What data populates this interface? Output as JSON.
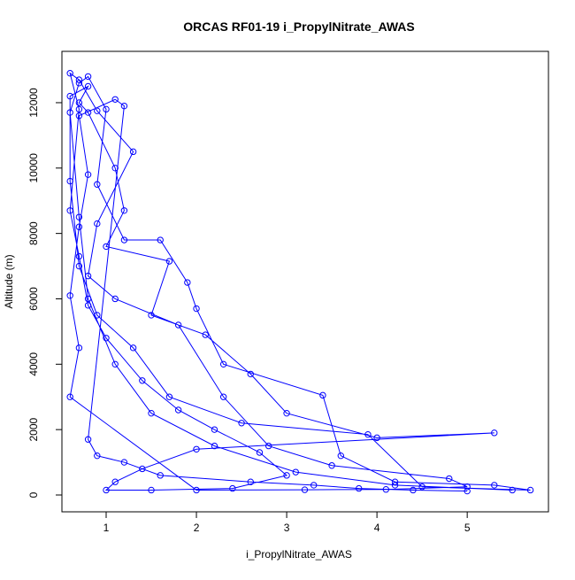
{
  "chart_data": {
    "type": "line",
    "title": "ORCAS RF01-19 i_PropylNitrate_AWAS",
    "xlabel": "i_PropylNitrate_AWAS",
    "ylabel": "Altitude (m)",
    "xlim": [
      0.51,
      5.9
    ],
    "ylim": [
      -515,
      13570
    ],
    "xticks": [
      1,
      2,
      3,
      4,
      5
    ],
    "yticks": [
      0,
      2000,
      4000,
      6000,
      8000,
      10000,
      12000
    ],
    "x": [
      5.5,
      4.2,
      3.1,
      2.2,
      1.5,
      1.1,
      0.8,
      0.7,
      0.6,
      0.7,
      0.8,
      1.0,
      0.9,
      1.2,
      1.6,
      1.9,
      2.0,
      2.3,
      3.4,
      3.6,
      4.2,
      5.3,
      5.7,
      4.5,
      3.9,
      2.5,
      1.7,
      1.3,
      0.9,
      0.7,
      0.6,
      0.6,
      0.8,
      0.7,
      0.8,
      1.1,
      1.2,
      1.0,
      1.7,
      1.5,
      2.1,
      2.6,
      3.0,
      4.0,
      5.3,
      2.0,
      1.4,
      1.1,
      1.0,
      1.5,
      2.4,
      3.0,
      2.7,
      2.2,
      1.8,
      1.4,
      1.0,
      0.8,
      0.7,
      0.6,
      0.7,
      0.6,
      0.7,
      0.9,
      1.3,
      0.9,
      0.8,
      1.1,
      1.8,
      2.3,
      2.8,
      3.5,
      4.8,
      5.0,
      4.1,
      3.2,
      2.0,
      0.6,
      0.7,
      0.6,
      0.7,
      0.8,
      0.7,
      1.1,
      1.2,
      0.8,
      0.9,
      1.2,
      1.6,
      2.6,
      3.3,
      3.8,
      4.4,
      5.0
    ],
    "series": [
      {
        "color": "#0000ff",
        "values": [
          150,
          300,
          700,
          1500,
          2500,
          4000,
          6000,
          8500,
          11700,
          12600,
          12800,
          11800,
          9500,
          7800,
          7800,
          6500,
          5700,
          4000,
          3050,
          1200,
          400,
          300,
          150,
          250,
          1850,
          2200,
          3000,
          4500,
          5500,
          7000,
          9600,
          12200,
          12500,
          12000,
          11700,
          10000,
          8700,
          7600,
          7150,
          5500,
          4900,
          3700,
          2500,
          1750,
          1900,
          1400,
          800,
          400,
          150,
          150,
          200,
          600,
          1300,
          2000,
          2600,
          3500,
          4800,
          5800,
          7300,
          8700,
          11800,
          12900,
          12700,
          11750,
          10500,
          8300,
          6700,
          6000,
          5200,
          3000,
          1500,
          900,
          500,
          250,
          170,
          160,
          150,
          3000,
          4500,
          6100,
          8200,
          9800,
          11600,
          12100,
          11900,
          1700,
          1200,
          1000,
          600,
          400,
          300,
          200,
          150,
          120
        ]
      }
    ]
  }
}
